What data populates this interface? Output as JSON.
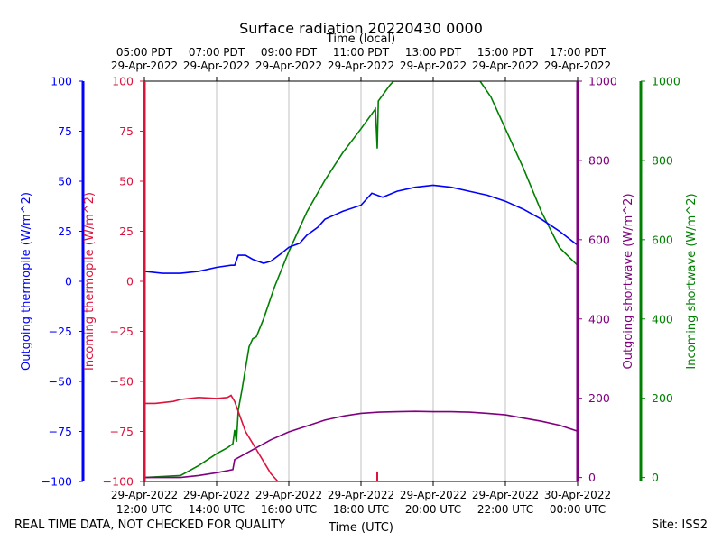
{
  "chart_data": {
    "type": "line",
    "title": "Surface radiation 20220430 0000",
    "x_top_label": "Time (local)",
    "xlabel": "Time (UTC)",
    "x_range": [
      12,
      24
    ],
    "x_ticks": [
      {
        "x": 12,
        "utc": [
          "29-Apr-2022",
          "12:00 UTC"
        ],
        "local": [
          "05:00 PDT",
          "29-Apr-2022"
        ]
      },
      {
        "x": 14,
        "utc": [
          "29-Apr-2022",
          "14:00 UTC"
        ],
        "local": [
          "07:00 PDT",
          "29-Apr-2022"
        ]
      },
      {
        "x": 16,
        "utc": [
          "29-Apr-2022",
          "16:00 UTC"
        ],
        "local": [
          "09:00 PDT",
          "29-Apr-2022"
        ]
      },
      {
        "x": 18,
        "utc": [
          "29-Apr-2022",
          "18:00 UTC"
        ],
        "local": [
          "11:00 PDT",
          "29-Apr-2022"
        ]
      },
      {
        "x": 20,
        "utc": [
          "29-Apr-2022",
          "20:00 UTC"
        ],
        "local": [
          "13:00 PDT",
          "29-Apr-2022"
        ]
      },
      {
        "x": 22,
        "utc": [
          "29-Apr-2022",
          "22:00 UTC"
        ],
        "local": [
          "15:00 PDT",
          "29-Apr-2022"
        ]
      },
      {
        "x": 24,
        "utc": [
          "30-Apr-2022",
          "00:00 UTC"
        ],
        "local": [
          "17:00 PDT",
          "29-Apr-2022"
        ]
      }
    ],
    "grid": "vertical",
    "axes": [
      {
        "id": "thermo_out",
        "label": "Outgoing thermopile (W/m^2)",
        "color": "#0000ff",
        "range": [
          -100,
          100
        ],
        "ticks": [
          "100",
          "75",
          "50",
          "25",
          "0",
          "−25",
          "−50",
          "−75",
          "−100"
        ],
        "tick_values": [
          100,
          75,
          50,
          25,
          0,
          -25,
          -50,
          -75,
          -100
        ]
      },
      {
        "id": "thermo_in",
        "label": "Incoming thermopile (W/m^2)",
        "color": "#dc143c",
        "range": [
          -100,
          100
        ],
        "ticks": [
          "100",
          "75",
          "50",
          "25",
          "0",
          "−25",
          "−50",
          "−75",
          "−100"
        ],
        "tick_values": [
          100,
          75,
          50,
          25,
          0,
          -25,
          -50,
          -75,
          -100
        ]
      },
      {
        "id": "sw_out",
        "label": "Outgoing shortwave (W/m^2)",
        "color": "#800080",
        "range": [
          -10,
          1000
        ],
        "ticks": [
          "1000",
          "800",
          "600",
          "400",
          "200",
          "0"
        ],
        "tick_values": [
          1000,
          800,
          600,
          400,
          200,
          0
        ]
      },
      {
        "id": "sw_in",
        "label": "Incoming shortwave (W/m^2)",
        "color": "#008000",
        "range": [
          -10,
          1000
        ],
        "ticks": [
          "1000",
          "800",
          "600",
          "400",
          "200",
          "0"
        ],
        "tick_values": [
          1000,
          800,
          600,
          400,
          200,
          0
        ]
      }
    ],
    "series": [
      {
        "axis": "sw_in",
        "color": "#008000",
        "points": [
          [
            12,
            0
          ],
          [
            13,
            5
          ],
          [
            13.5,
            30
          ],
          [
            14,
            60
          ],
          [
            14.3,
            75
          ],
          [
            14.45,
            85
          ],
          [
            14.5,
            120
          ],
          [
            14.55,
            90
          ],
          [
            14.6,
            170
          ],
          [
            14.7,
            220
          ],
          [
            14.9,
            330
          ],
          [
            15.0,
            350
          ],
          [
            15.1,
            355
          ],
          [
            15.3,
            400
          ],
          [
            15.6,
            480
          ],
          [
            16.0,
            570
          ],
          [
            16.5,
            670
          ],
          [
            17.0,
            750
          ],
          [
            17.5,
            820
          ],
          [
            18.0,
            880
          ],
          [
            18.4,
            930
          ],
          [
            18.45,
            830
          ],
          [
            18.48,
            950
          ],
          [
            18.8,
            990
          ],
          [
            18.9,
            1000
          ],
          [
            21.3,
            1000
          ],
          [
            21.6,
            960
          ],
          [
            22.0,
            880
          ],
          [
            22.5,
            780
          ],
          [
            23.0,
            670
          ],
          [
            23.5,
            580
          ],
          [
            24.0,
            535
          ]
        ]
      },
      {
        "axis": "sw_out",
        "color": "#800080",
        "points": [
          [
            12,
            0
          ],
          [
            13,
            0
          ],
          [
            13.5,
            5
          ],
          [
            14,
            12
          ],
          [
            14.45,
            20
          ],
          [
            14.5,
            45
          ],
          [
            15,
            70
          ],
          [
            15.5,
            95
          ],
          [
            16,
            115
          ],
          [
            16.5,
            130
          ],
          [
            17,
            145
          ],
          [
            17.5,
            155
          ],
          [
            18,
            162
          ],
          [
            18.5,
            165
          ],
          [
            19,
            166
          ],
          [
            19.5,
            167
          ],
          [
            20,
            166
          ],
          [
            20.5,
            166
          ],
          [
            21,
            165
          ],
          [
            21.5,
            162
          ],
          [
            22,
            158
          ],
          [
            22.5,
            150
          ],
          [
            23,
            142
          ],
          [
            23.5,
            132
          ],
          [
            24,
            117
          ]
        ]
      },
      {
        "axis": "thermo_in",
        "color": "#dc143c",
        "points": [
          [
            12,
            -61
          ],
          [
            12.3,
            -61
          ],
          [
            12.8,
            -60
          ],
          [
            13,
            -59
          ],
          [
            13.5,
            -58
          ],
          [
            14,
            -58.5
          ],
          [
            14.3,
            -58
          ],
          [
            14.4,
            -57
          ],
          [
            14.5,
            -60
          ],
          [
            14.8,
            -75
          ],
          [
            15.2,
            -87
          ],
          [
            15.5,
            -96
          ],
          [
            15.6,
            -98
          ],
          [
            15.7,
            -100
          ]
        ]
      },
      {
        "axis": "thermo_out",
        "color": "#0000ff",
        "points": [
          [
            12,
            5
          ],
          [
            12.5,
            4
          ],
          [
            13,
            4
          ],
          [
            13.5,
            5
          ],
          [
            14,
            7
          ],
          [
            14.4,
            8
          ],
          [
            14.5,
            8
          ],
          [
            14.6,
            13
          ],
          [
            14.8,
            13
          ],
          [
            15,
            11
          ],
          [
            15.3,
            9
          ],
          [
            15.5,
            10
          ],
          [
            15.8,
            14
          ],
          [
            16,
            17
          ],
          [
            16.3,
            19
          ],
          [
            16.5,
            23
          ],
          [
            16.8,
            27
          ],
          [
            17,
            31
          ],
          [
            17.5,
            35
          ],
          [
            18,
            38
          ],
          [
            18.3,
            44
          ],
          [
            18.6,
            42
          ],
          [
            19,
            45
          ],
          [
            19.5,
            47
          ],
          [
            20,
            48
          ],
          [
            20.5,
            47
          ],
          [
            21,
            45
          ],
          [
            21.5,
            43
          ],
          [
            22,
            40
          ],
          [
            22.5,
            36
          ],
          [
            23,
            31
          ],
          [
            23.5,
            25
          ],
          [
            24,
            18
          ]
        ]
      }
    ],
    "spikes": [
      {
        "axis": "thermo_in",
        "color": "#dc143c",
        "x": 18.45,
        "y_from": -100,
        "y_to": -95
      }
    ]
  },
  "footer": {
    "disclaimer": "REAL TIME DATA, NOT CHECKED FOR QUALITY",
    "site": "Site: ISS2"
  }
}
